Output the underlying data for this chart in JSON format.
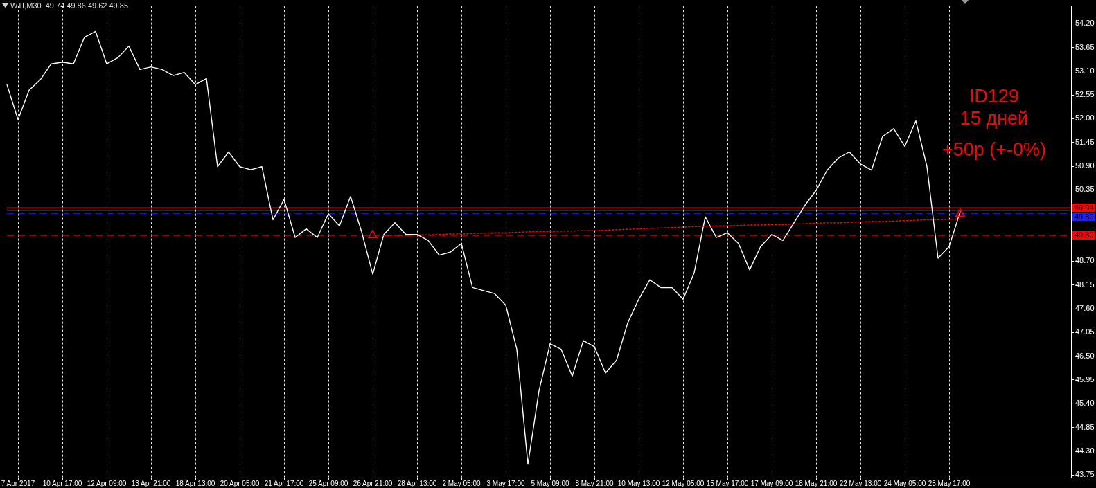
{
  "chart_data": {
    "type": "line",
    "title": "WTI,M30  49.74 49.86 49.62 49.85",
    "categories": [
      null,
      "7 Apr 2017",
      null,
      null,
      null,
      "10 Apr 17:00",
      null,
      null,
      null,
      "12 Apr 09:00",
      null,
      null,
      null,
      "13 Apr 21:00",
      null,
      null,
      null,
      "18 Apr 13:00",
      null,
      null,
      null,
      "20 Apr 05:00",
      null,
      null,
      null,
      "21 Apr 17:00",
      null,
      null,
      null,
      "25 Apr 09:00",
      null,
      null,
      null,
      "26 Apr 21:00",
      null,
      null,
      null,
      "28 Apr 13:00",
      null,
      null,
      null,
      "2 May 05:00",
      null,
      null,
      null,
      "3 May 17:00",
      null,
      null,
      null,
      "5 May 09:00",
      null,
      null,
      null,
      "8 May 21:00",
      null,
      null,
      null,
      "10 May 13:00",
      null,
      null,
      null,
      "12 May 05:00",
      null,
      null,
      null,
      "15 May 17:00",
      null,
      null,
      null,
      "17 May 09:00",
      null,
      null,
      null,
      "18 May 21:00",
      null,
      null,
      null,
      "22 May 13:00",
      null,
      null,
      null,
      "24 May 05:00",
      null,
      null,
      null,
      "25 May 17:00",
      null,
      null,
      null,
      null,
      null,
      null,
      null,
      null,
      null,
      null,
      null
    ],
    "series": [
      {
        "color": "#ffffff",
        "values": [
          52.79,
          51.98,
          52.66,
          52.9,
          53.27,
          53.31,
          53.27,
          53.89,
          54.02,
          53.27,
          53.41,
          53.68,
          53.14,
          53.2,
          53.14,
          53.0,
          53.07,
          52.79,
          52.93,
          50.89,
          51.23,
          50.89,
          50.82,
          50.89,
          49.66,
          50.13,
          49.25,
          49.45,
          49.25,
          49.8,
          49.52,
          50.2,
          49.38,
          48.4,
          49.32,
          49.59,
          49.32,
          49.32,
          49.18,
          48.84,
          48.91,
          49.11,
          48.09,
          48.02,
          47.95,
          47.68,
          46.66,
          44.0,
          45.7,
          46.79,
          46.66,
          46.04,
          46.86,
          46.72,
          46.11,
          46.41,
          47.27,
          47.82,
          48.27,
          48.09,
          48.09,
          47.82,
          48.43,
          49.73,
          49.25,
          49.36,
          49.11,
          48.5,
          49.04,
          49.32,
          49.18,
          49.59,
          50.0,
          50.34,
          50.81,
          51.09,
          51.23,
          50.95,
          50.81,
          51.59,
          51.77,
          51.36,
          51.95,
          50.89,
          48.77,
          49.04,
          49.85,
          null,
          null,
          null,
          null,
          null,
          null,
          null,
          null,
          null,
          null
        ]
      },
      {
        "type": "line",
        "color": "#ff0000",
        "line_style": "dotted",
        "values": [
          null,
          null,
          null,
          null,
          null,
          null,
          null,
          null,
          null,
          null,
          null,
          null,
          null,
          null,
          null,
          null,
          null,
          null,
          null,
          null,
          null,
          null,
          null,
          null,
          null,
          null,
          null,
          null,
          null,
          null,
          null,
          null,
          null,
          null,
          49.29,
          49.3,
          49.3,
          49.31,
          49.31,
          49.32,
          49.33,
          49.33,
          49.34,
          49.35,
          49.36,
          49.36,
          49.37,
          49.38,
          49.39,
          49.39,
          49.4,
          49.4,
          49.41,
          49.41,
          49.42,
          49.43,
          49.44,
          49.45,
          49.46,
          49.47,
          49.48,
          49.49,
          49.5,
          49.51,
          49.52,
          49.52,
          49.53,
          49.54,
          49.54,
          49.55,
          49.55,
          49.56,
          49.57,
          49.58,
          49.59,
          49.59,
          49.6,
          49.61,
          49.62,
          49.62,
          49.63,
          49.64,
          49.65,
          49.66,
          49.66,
          49.67,
          49.68,
          null,
          null,
          null,
          null,
          null,
          null,
          null,
          null,
          null,
          null
        ]
      },
      {
        "type": "scatter",
        "color": "#ff0000",
        "marker": "triangle",
        "values": [
          null,
          null,
          null,
          null,
          null,
          null,
          null,
          null,
          null,
          null,
          null,
          null,
          null,
          null,
          null,
          null,
          null,
          null,
          null,
          null,
          null,
          null,
          null,
          null,
          null,
          null,
          null,
          null,
          null,
          null,
          null,
          null,
          null,
          49.3,
          null,
          null,
          null,
          null,
          null,
          null,
          null,
          null,
          null,
          null,
          null,
          null,
          null,
          null,
          null,
          null,
          null,
          null,
          null,
          null,
          null,
          null,
          null,
          null,
          null,
          null,
          null,
          null,
          null,
          null,
          null,
          null,
          null,
          null,
          null,
          null,
          null,
          null,
          null,
          null,
          null,
          null,
          null,
          null,
          null,
          null,
          null,
          null,
          null,
          null,
          null,
          null,
          49.8,
          null,
          null,
          null,
          null,
          null,
          null,
          null,
          null,
          null,
          null
        ]
      }
    ],
    "ylim": [
      43.69,
      54.61
    ],
    "yticks": [
      43.75,
      {
        "value": 44.3,
        "label": "44.30"
      },
      44.85,
      {
        "value": 45.4,
        "label": "45.40"
      },
      45.95,
      {
        "value": 46.5,
        "label": "46.50"
      },
      47.05,
      {
        "value": 47.6,
        "label": "47.60"
      },
      48.15,
      {
        "value": 48.7,
        "label": "48.70"
      },
      {
        "value": 49.25,
        "label": null
      },
      {
        "value": 49.8,
        "label": null
      },
      50.35,
      {
        "value": 50.9,
        "label": "50.90"
      },
      51.45,
      {
        "value": 52,
        "label": "52.00"
      },
      52.55,
      {
        "value": 53.1,
        "label": "53.10"
      },
      53.65,
      {
        "value": 54.2,
        "label": "54.20"
      }
    ],
    "ref_lines": [
      {
        "axis": "y",
        "value": 49.94,
        "label": "49.94",
        "color": "#ff0000",
        "line_style": "solid"
      },
      {
        "axis": "y",
        "value": 49.88,
        "color": "#9aa3b8",
        "line_style": "solid"
      },
      {
        "axis": "y",
        "value": 49.8,
        "label": "49.80",
        "color": "#1e1eff",
        "line_style": "dashed"
      },
      {
        "axis": "y",
        "value": 49.3,
        "label": "49.30",
        "color": "#ff0000",
        "line_style": "dashed"
      }
    ],
    "annotations": [
      "ID129",
      "15 дней",
      "+50p (+-0%)"
    ],
    "grid": "x"
  }
}
